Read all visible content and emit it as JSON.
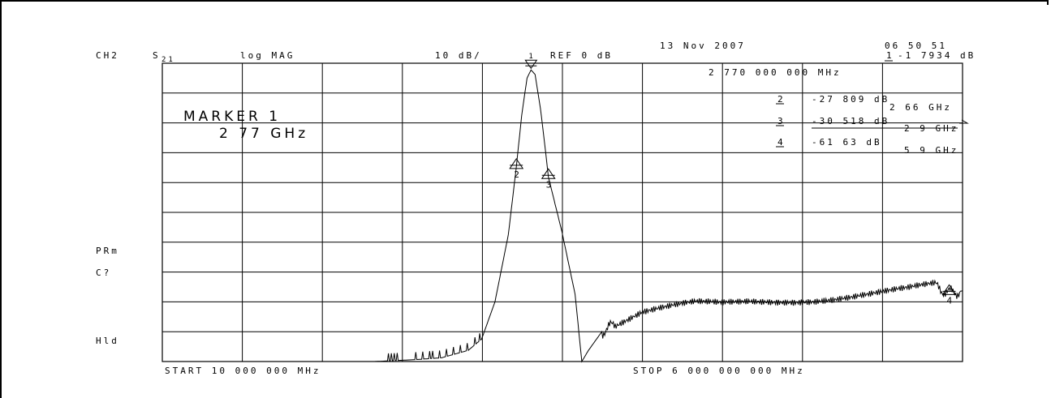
{
  "header": {
    "channel": "CH2",
    "param": "S",
    "param_sub": "21",
    "format": "log MAG",
    "scale": "10 dB/",
    "ref": "REF 0 dB",
    "date": "13 Nov 2007",
    "time": "06 50 51"
  },
  "active_marker": {
    "line1_num": "1",
    "line1_val": "-1 7934 dB",
    "line2": "2 770 000 000 MHz"
  },
  "marker_box": {
    "title": "MARKER 1",
    "value": "2 77 GHz"
  },
  "marker_list": [
    {
      "num": "2",
      "db": "-27 809 dB",
      "freq": "2 66 GHz"
    },
    {
      "num": "3",
      "db": "-30 518 dB",
      "freq": "2 9 GHz"
    },
    {
      "num": "4",
      "db": "-61 63 dB",
      "freq": "5 9 GHz"
    }
  ],
  "side_labels": {
    "prm": "PRm",
    "cq": "C?",
    "hld": "Hld"
  },
  "footer": {
    "start": "START 10 000 000 MHz",
    "stop": "STOP 6 000 000 000 MHz"
  },
  "chart_data": {
    "type": "line",
    "xlim": [
      10,
      6000
    ],
    "ylim": [
      -80,
      0
    ],
    "grid": true,
    "series": [
      {
        "x": [
          10,
          400,
          800,
          1200,
          1600,
          1900,
          2100,
          2300,
          2400,
          2500,
          2600,
          2660,
          2700,
          2740,
          2770,
          2800,
          2840,
          2880,
          2900,
          3000,
          3100,
          3150,
          3200,
          3300,
          3400,
          3600,
          3800,
          4000,
          4200,
          4400,
          4600,
          4800,
          5000,
          5200,
          5400,
          5600,
          5800,
          5900,
          6000
        ],
        "y": [
          -80,
          -80,
          -80,
          -80,
          -80,
          -79.5,
          -79,
          -77,
          -74,
          -64,
          -46,
          -27.8,
          -14,
          -4,
          -1.8,
          -3,
          -12,
          -24,
          -30.5,
          -45,
          -62,
          -80,
          -77,
          -72,
          -70,
          -67,
          -66,
          -65,
          -65,
          -64,
          -63.5,
          -63,
          -62.5,
          -62,
          -61.5,
          -61,
          -60,
          -61.6,
          -61
        ]
      }
    ],
    "markers": [
      {
        "label": "1",
        "x": 2770,
        "y": -1.79,
        "pointing": "down"
      },
      {
        "label": "2",
        "x": 2660,
        "y": -27.8,
        "pointing": "up"
      },
      {
        "label": "3",
        "x": 2900,
        "y": -30.5,
        "pointing": "up"
      },
      {
        "label": "4",
        "x": 5900,
        "y": -61.6,
        "pointing": "up"
      }
    ]
  }
}
